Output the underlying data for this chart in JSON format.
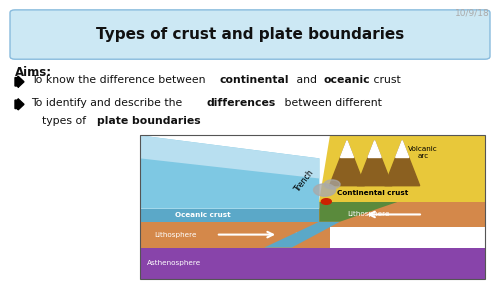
{
  "bg_color": "#ffffff",
  "title_text": "Types of crust and plate boundaries",
  "title_box_facecolor": "#cce8f4",
  "title_box_edgecolor": "#88bbdd",
  "aims_label": "Aims:",
  "date_text": "10/9/18",
  "date_color": "#aaaaaa",
  "font_size_title": 11,
  "font_size_body": 7.8,
  "font_size_date": 6.5,
  "font_size_aims": 8.5,
  "font_size_diag": 5.2,
  "diagram_colors": {
    "ocean_blue": "#7ec8e3",
    "ocean_blue2": "#b8dff0",
    "oceanic_crust": "#5ba8c8",
    "continental_crust": "#e8c83a",
    "lithosphere_orange": "#d4884a",
    "asthenosphere": "#8844aa",
    "green_mantle": "#5a8a3c",
    "subduct_green": "#4a7a30",
    "volcano_brown": "#8B6020",
    "volcano_dark": "#6b4010",
    "lava_red": "#cc2200",
    "snow_white": "#ffffff",
    "smoke_gray": "#aaaaaa"
  },
  "diagram_labels": {
    "oceanic_crust": "Oceanic crust",
    "continental_crust": "Continental crust",
    "lithosphere_l": "Lithosphere",
    "lithosphere_r": "Lithosphere",
    "asthenosphere": "Asthenosphere",
    "trench": "Trench",
    "volcanic_arc": "Volcanic\narc"
  }
}
